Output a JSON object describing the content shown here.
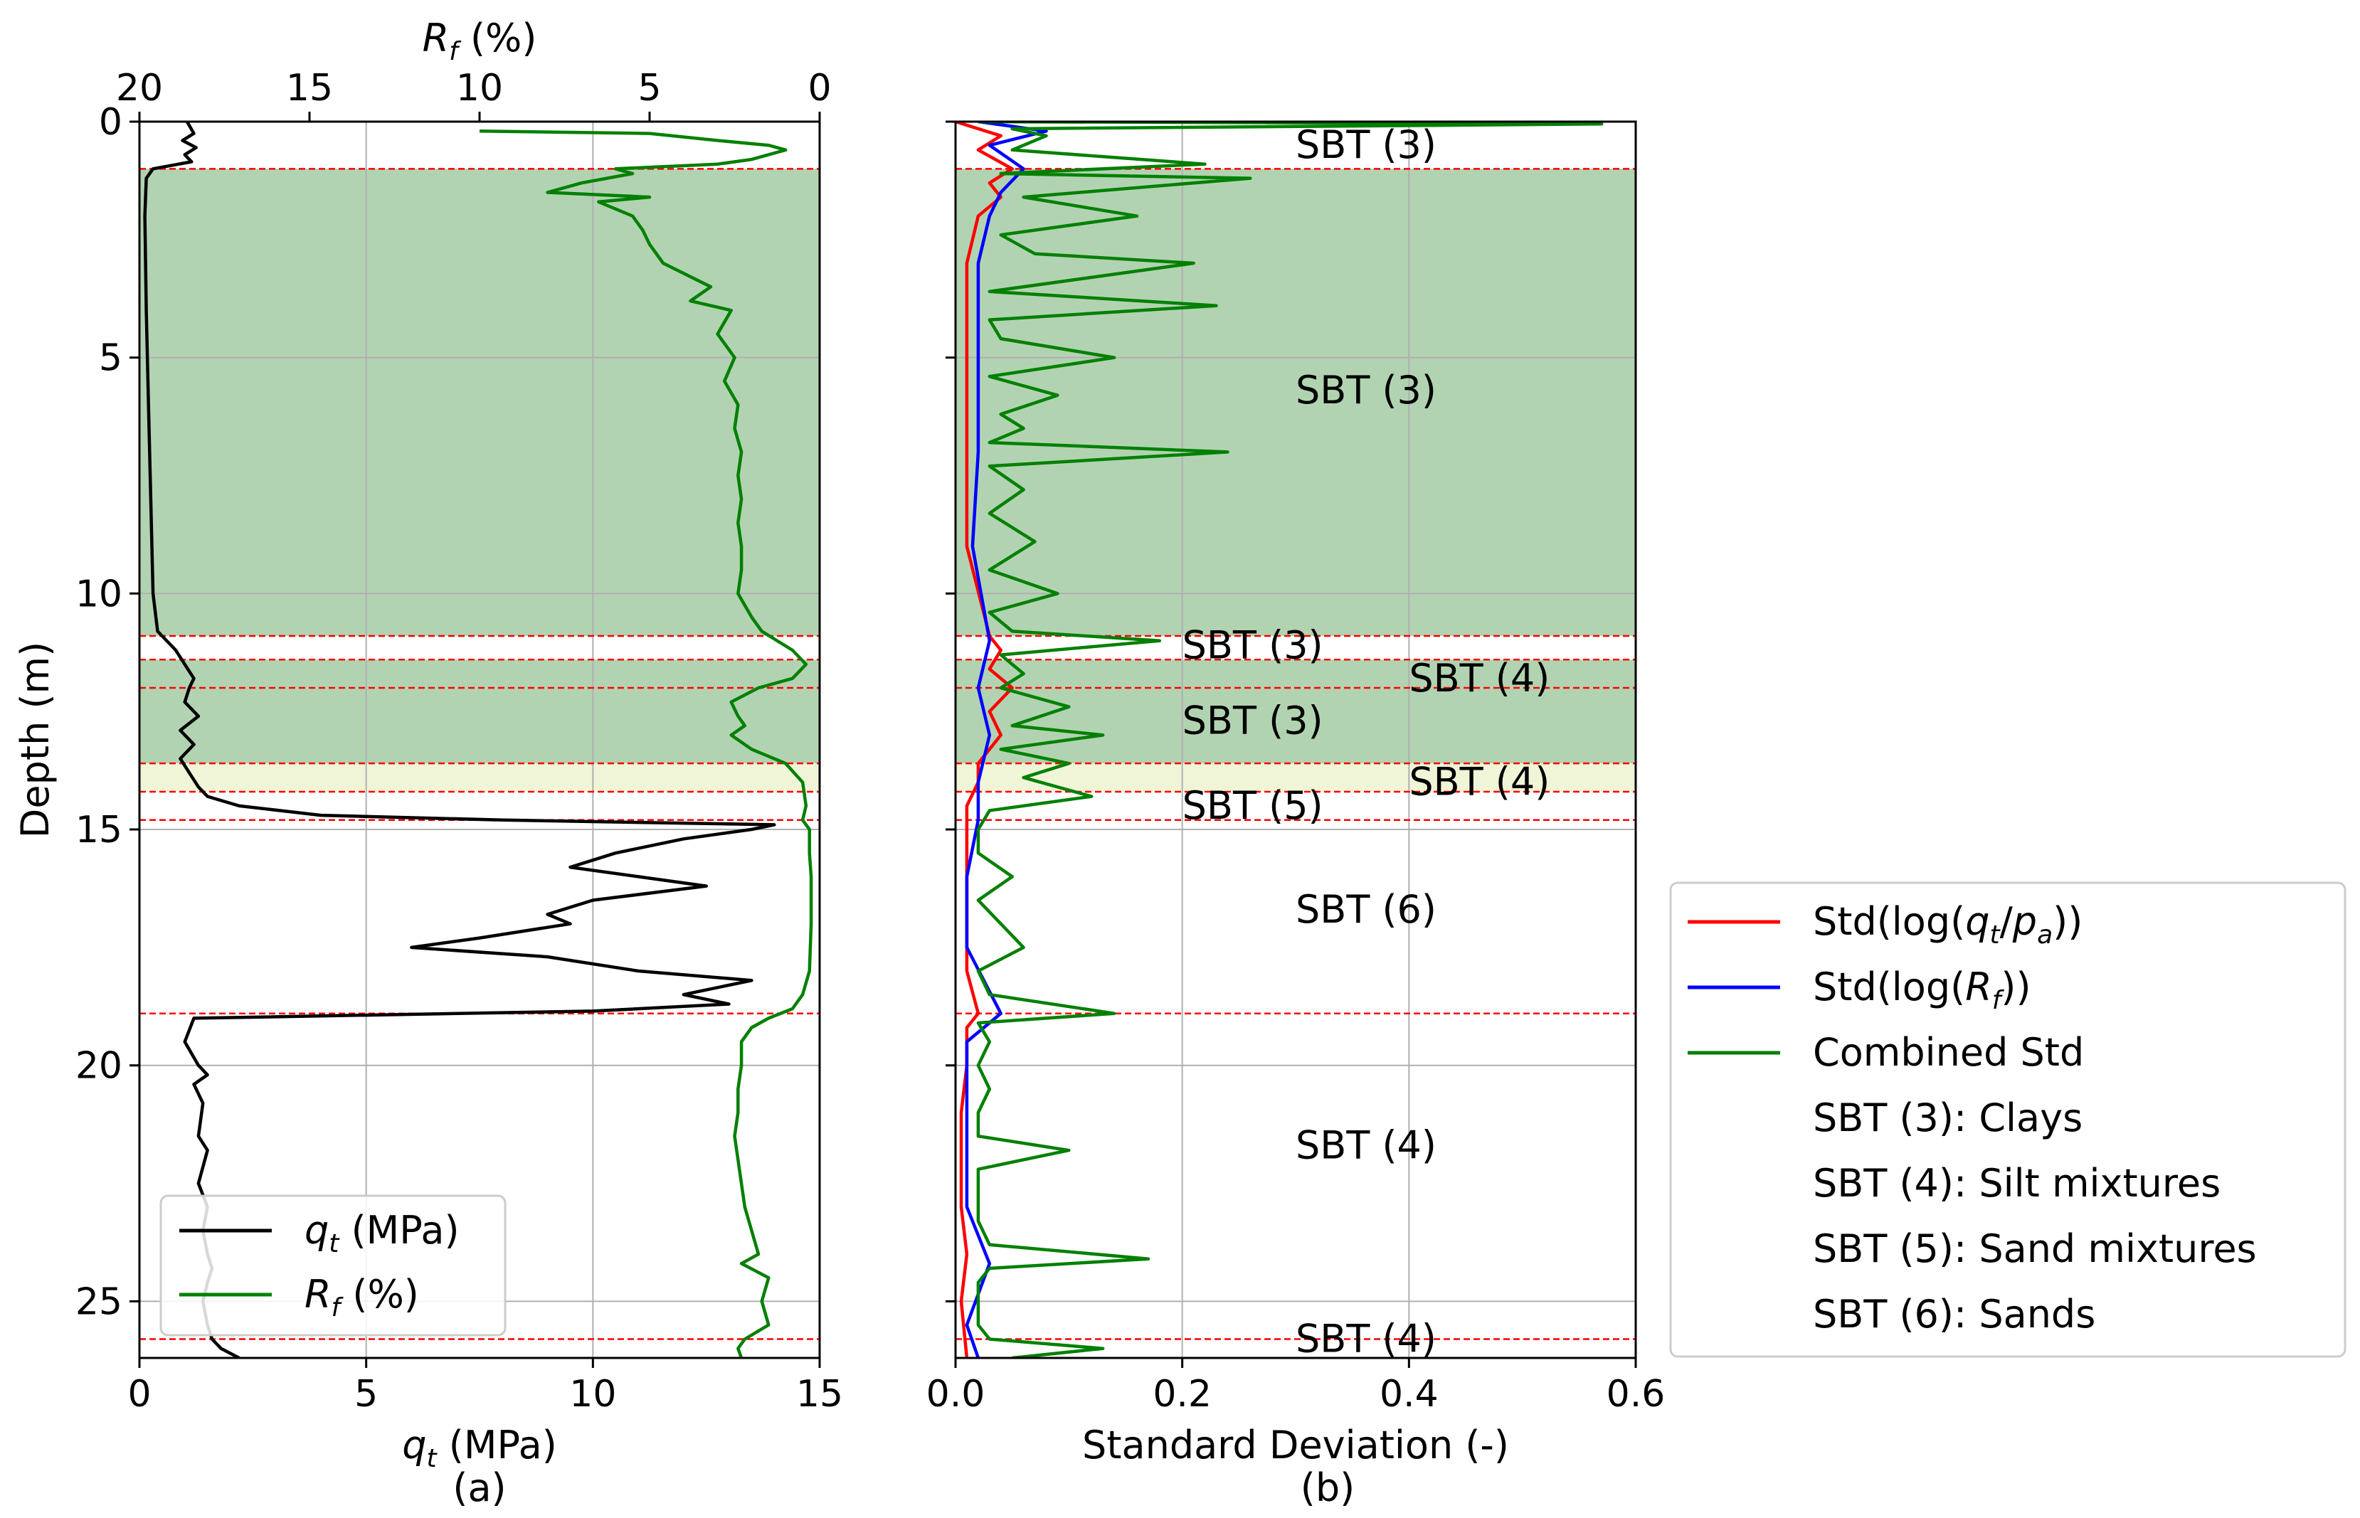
{
  "chart_data": [
    {
      "id": "a",
      "type": "line",
      "panel_label": "(a)",
      "ylabel": "Depth (m)",
      "ylim": [
        0,
        26.2
      ],
      "yticks": [
        0,
        5,
        10,
        15,
        20,
        25
      ],
      "ytick_labels": [
        "0",
        "5",
        "10",
        "15",
        "20",
        "25"
      ],
      "xlabel_bottom": "q_t (MPa)",
      "xlim_bottom": [
        0,
        15
      ],
      "xticks_bottom": [
        0,
        5,
        10,
        15
      ],
      "xtick_labels_bottom": [
        "0",
        "5",
        "10",
        "15"
      ],
      "xlabel_top": "R_f (%)",
      "xlim_top": [
        20,
        0
      ],
      "xticks_top": [
        20,
        15,
        10,
        5,
        0
      ],
      "xtick_labels_top": [
        "20",
        "15",
        "10",
        "5",
        "0"
      ],
      "grid": true,
      "legend": {
        "position": "lower-left",
        "entries": [
          {
            "label": "q_t (MPa)",
            "label_main": "q",
            "label_sub": "t",
            "label_rest": " (MPa)",
            "color": "#000000"
          },
          {
            "label": "R_f (%)",
            "label_main": "R",
            "label_sub": "f",
            "label_rest": " (%)",
            "color": "#008000"
          }
        ]
      },
      "series": [
        {
          "name": "q_t (MPa)",
          "axis": "bottom",
          "color": "#000000",
          "depth": [
            0,
            0.25,
            0.4,
            0.55,
            0.7,
            0.85,
            1.0,
            1.2,
            2,
            4,
            6,
            8,
            10,
            10.8,
            11.2,
            11.5,
            11.8,
            12.0,
            12.3,
            12.6,
            12.9,
            13.2,
            13.5,
            13.8,
            14.1,
            14.3,
            14.5,
            14.7,
            14.8,
            14.9,
            15.0,
            15.2,
            15.5,
            15.8,
            16.0,
            16.2,
            16.5,
            16.8,
            17.0,
            17.3,
            17.5,
            17.7,
            18.0,
            18.2,
            18.5,
            18.7,
            18.85,
            19.0,
            19.5,
            20.0,
            20.2,
            20.4,
            20.8,
            21.5,
            21.8,
            22.5,
            23.0,
            23.5,
            24.0,
            24.3,
            24.6,
            25.0,
            25.5,
            25.8,
            26.0,
            26.2
          ],
          "values": [
            1.05,
            1.2,
            0.95,
            1.25,
            1.0,
            1.15,
            0.3,
            0.15,
            0.12,
            0.15,
            0.2,
            0.25,
            0.3,
            0.4,
            0.8,
            1.0,
            1.2,
            1.1,
            1.0,
            1.3,
            0.9,
            1.2,
            0.9,
            1.1,
            1.3,
            1.5,
            2.2,
            4.0,
            8.0,
            14.0,
            13.5,
            12.0,
            10.5,
            9.5,
            11.0,
            12.5,
            10.0,
            9.0,
            9.5,
            7.5,
            6.0,
            9.0,
            11.0,
            13.5,
            12.0,
            13.0,
            10.0,
            1.2,
            1.0,
            1.3,
            1.5,
            1.2,
            1.4,
            1.3,
            1.5,
            1.3,
            1.5,
            1.4,
            1.5,
            1.6,
            1.5,
            1.4,
            1.5,
            1.6,
            1.8,
            2.2
          ]
        },
        {
          "name": "R_f (%)",
          "axis": "top",
          "color": "#008000",
          "depth": [
            0.2,
            0.25,
            0.4,
            0.5,
            0.6,
            0.8,
            0.9,
            1.0,
            1.1,
            1.3,
            1.5,
            1.6,
            1.7,
            2.0,
            2.3,
            2.6,
            3.0,
            3.5,
            3.8,
            4.0,
            4.5,
            5.0,
            5.5,
            6.0,
            6.5,
            7.0,
            7.5,
            8.0,
            8.5,
            9.0,
            9.5,
            10.0,
            10.5,
            10.8,
            11.2,
            11.5,
            11.8,
            12.0,
            12.3,
            12.6,
            12.8,
            13.0,
            13.3,
            13.6,
            14.0,
            14.5,
            14.8,
            15.0,
            15.5,
            16.0,
            17.0,
            18.0,
            18.5,
            18.8,
            19.0,
            19.2,
            19.5,
            20.0,
            20.5,
            21.0,
            21.5,
            22.0,
            23.0,
            24.0,
            24.2,
            24.5,
            25.0,
            25.5,
            25.8,
            26.0,
            26.2
          ],
          "values": [
            10.0,
            5.0,
            3.0,
            1.5,
            1.0,
            2.0,
            3.0,
            6.0,
            5.5,
            7.0,
            8.0,
            5.0,
            6.5,
            5.5,
            5.2,
            5.0,
            4.6,
            3.2,
            3.8,
            2.6,
            3.0,
            2.5,
            2.8,
            2.4,
            2.5,
            2.3,
            2.4,
            2.3,
            2.4,
            2.3,
            2.3,
            2.4,
            2.0,
            1.7,
            0.8,
            0.4,
            0.8,
            1.8,
            2.6,
            2.4,
            2.2,
            2.6,
            2.0,
            1.0,
            0.5,
            0.4,
            0.5,
            0.3,
            0.3,
            0.25,
            0.25,
            0.3,
            0.5,
            0.8,
            1.5,
            2.0,
            2.3,
            2.3,
            2.4,
            2.4,
            2.5,
            2.4,
            2.2,
            1.8,
            2.3,
            1.5,
            1.7,
            1.5,
            2.2,
            2.4,
            2.3
          ]
        }
      ]
    },
    {
      "id": "b",
      "type": "line",
      "panel_label": "(b)",
      "xlabel": "Standard Deviation (-)",
      "xlim": [
        0.0,
        0.6
      ],
      "xticks": [
        0.0,
        0.2,
        0.4,
        0.6
      ],
      "xtick_labels": [
        "0.0",
        "0.2",
        "0.4",
        "0.6"
      ],
      "ylim": [
        0,
        26.2
      ],
      "grid": true,
      "legend": {
        "position": "right, outside plot",
        "entries": [
          {
            "label": "Std(log(q_t/p_a))",
            "parts": [
              "Std(log(",
              "q",
              "t",
              "/",
              "p",
              "a",
              "))"
            ],
            "color": "#ff0000"
          },
          {
            "label": "Std(log(R_f))",
            "parts": [
              "Std(log(",
              "R",
              "f",
              "))"
            ],
            "color": "#0000ff"
          },
          {
            "label": "Combined Std",
            "color": "#008000"
          },
          {
            "label": "SBT (3): Clays",
            "color": null
          },
          {
            "label": "SBT (4): Silt mixtures",
            "color": null
          },
          {
            "label": "SBT (5): Sand mixtures",
            "color": null
          },
          {
            "label": "SBT (6): Sands",
            "color": null
          }
        ]
      },
      "series": [
        {
          "name": "Std(log(q_t/p_a))",
          "color": "#ff0000",
          "depth": [
            0,
            0.3,
            0.6,
            1.0,
            1.3,
            1.6,
            2.0,
            3.0,
            5.0,
            7.0,
            9.0,
            10.9,
            11.2,
            11.6,
            12.0,
            12.5,
            13.0,
            13.6,
            14.0,
            14.5,
            15.0,
            16.0,
            17.0,
            18.0,
            18.9,
            19.2,
            20.0,
            21.0,
            22.0,
            23.0,
            24.0,
            25.0,
            26.2
          ],
          "values": [
            0.0,
            0.04,
            0.02,
            0.05,
            0.03,
            0.04,
            0.02,
            0.01,
            0.01,
            0.01,
            0.01,
            0.03,
            0.04,
            0.03,
            0.05,
            0.03,
            0.04,
            0.02,
            0.02,
            0.01,
            0.01,
            0.01,
            0.01,
            0.01,
            0.02,
            0.01,
            0.01,
            0.005,
            0.005,
            0.005,
            0.01,
            0.005,
            0.01
          ]
        },
        {
          "name": "Std(log(R_f))",
          "color": "#0000ff",
          "depth": [
            0,
            0.2,
            0.5,
            1.0,
            1.5,
            2.0,
            3.0,
            5.0,
            7.0,
            9.0,
            11.0,
            12.0,
            13.0,
            14.0,
            14.8,
            16.0,
            17.5,
            18.9,
            19.5,
            21.0,
            23.0,
            24.2,
            25.5,
            26.2
          ],
          "values": [
            0.02,
            0.08,
            0.03,
            0.06,
            0.04,
            0.03,
            0.02,
            0.02,
            0.02,
            0.015,
            0.03,
            0.02,
            0.03,
            0.02,
            0.02,
            0.01,
            0.01,
            0.04,
            0.01,
            0.01,
            0.01,
            0.03,
            0.01,
            0.02
          ]
        },
        {
          "name": "Combined Std",
          "color": "#008000",
          "depth": [
            0,
            0.05,
            0.15,
            0.3,
            0.6,
            0.9,
            1.1,
            1.2,
            1.6,
            2.0,
            2.4,
            2.8,
            3.0,
            3.6,
            3.9,
            4.2,
            4.6,
            5.0,
            5.4,
            5.8,
            6.2,
            6.5,
            6.8,
            7.0,
            7.3,
            7.8,
            8.3,
            8.9,
            9.5,
            10.0,
            10.4,
            10.8,
            11.0,
            11.3,
            11.7,
            12.0,
            12.4,
            12.8,
            13.0,
            13.3,
            13.6,
            13.9,
            14.3,
            14.6,
            15.0,
            15.5,
            16.0,
            16.5,
            17.0,
            17.5,
            18.0,
            18.5,
            18.9,
            19.1,
            19.5,
            20.0,
            20.5,
            21.0,
            21.5,
            21.8,
            22.2,
            22.8,
            23.3,
            23.8,
            24.1,
            24.3,
            24.6,
            25.0,
            25.5,
            25.8,
            26.0,
            26.2
          ],
          "values": [
            0.02,
            0.57,
            0.05,
            0.08,
            0.05,
            0.22,
            0.04,
            0.26,
            0.06,
            0.16,
            0.04,
            0.07,
            0.21,
            0.03,
            0.23,
            0.03,
            0.04,
            0.14,
            0.03,
            0.09,
            0.04,
            0.06,
            0.03,
            0.24,
            0.03,
            0.06,
            0.03,
            0.07,
            0.03,
            0.09,
            0.03,
            0.05,
            0.18,
            0.04,
            0.06,
            0.04,
            0.1,
            0.05,
            0.13,
            0.04,
            0.1,
            0.06,
            0.12,
            0.03,
            0.02,
            0.02,
            0.05,
            0.02,
            0.04,
            0.06,
            0.02,
            0.03,
            0.14,
            0.02,
            0.03,
            0.02,
            0.03,
            0.02,
            0.02,
            0.1,
            0.02,
            0.02,
            0.02,
            0.03,
            0.17,
            0.03,
            0.02,
            0.02,
            0.02,
            0.03,
            0.13,
            0.05
          ]
        }
      ],
      "zone_labels": [
        {
          "text": "SBT (3)",
          "x": 0.3,
          "depth": 0.5
        },
        {
          "text": "SBT (3)",
          "x": 0.3,
          "depth": 5.7
        },
        {
          "text": "SBT (3)",
          "x": 0.2,
          "depth": 11.1
        },
        {
          "text": "SBT (4)",
          "x": 0.4,
          "depth": 11.8
        },
        {
          "text": "SBT (3)",
          "x": 0.2,
          "depth": 12.7
        },
        {
          "text": "SBT (4)",
          "x": 0.4,
          "depth": 14.0
        },
        {
          "text": "SBT (5)",
          "x": 0.2,
          "depth": 14.5
        },
        {
          "text": "SBT (6)",
          "x": 0.3,
          "depth": 16.7
        },
        {
          "text": "SBT (4)",
          "x": 0.3,
          "depth": 21.7
        },
        {
          "text": "SBT (4)",
          "x": 0.3,
          "depth": 25.8
        }
      ]
    }
  ],
  "layers": {
    "boundaries": [
      1.0,
      10.9,
      11.4,
      12.0,
      13.6,
      14.2,
      14.8,
      18.9,
      25.8
    ],
    "boundary_color": "#ff0000",
    "shaded": [
      {
        "from": 1.0,
        "to": 10.9,
        "sbt": 3,
        "color": "#b2d3b2"
      },
      {
        "from": 11.4,
        "to": 12.0,
        "sbt": 3,
        "color": "#b2d3b2"
      },
      {
        "from": 12.0,
        "to": 13.6,
        "sbt": 3,
        "color": "#b2d3b2"
      },
      {
        "from": 13.6,
        "to": 14.2,
        "sbt": 4,
        "color": "#f0f5d8"
      }
    ]
  }
}
